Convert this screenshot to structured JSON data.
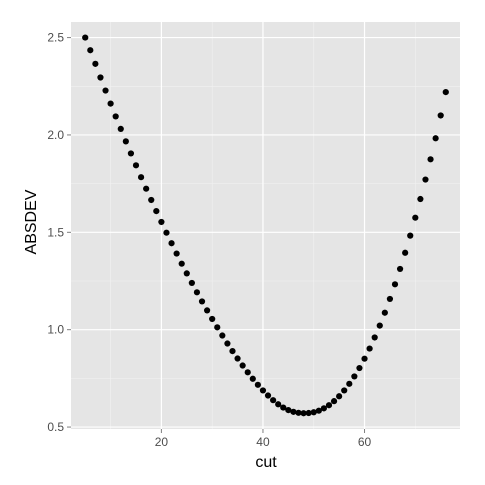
{
  "chart_data": {
    "type": "scatter",
    "title": "",
    "xlabel": "cut",
    "ylabel": "ABSDEV",
    "xlim": [
      2.2,
      78.8
    ],
    "ylim": [
      0.49,
      2.58
    ],
    "x_ticks": [
      20,
      40,
      60
    ],
    "x_tick_labels": [
      "20",
      "40",
      "60"
    ],
    "y_ticks": [
      0.5,
      1.0,
      1.5,
      2.0,
      2.5
    ],
    "y_tick_labels": [
      "0.5",
      "1.0",
      "1.5",
      "2.0",
      "2.5"
    ],
    "grid": true,
    "legend": "none",
    "colors": {
      "panel_background": "#e5e5e5",
      "grid_major": "#ffffff",
      "grid_minor": "#f2f2f2",
      "point": "#000000",
      "tick_label": "#4d4d4d"
    },
    "series": [
      {
        "x": [
          5,
          6,
          7,
          8,
          9,
          10,
          11,
          12,
          13,
          14,
          15,
          16,
          17,
          18,
          19,
          20,
          21,
          22,
          23,
          24,
          25,
          26,
          27,
          28,
          29,
          30,
          31,
          32,
          33,
          34,
          35,
          36,
          37,
          38,
          39,
          40,
          41,
          42,
          43,
          44,
          45,
          46,
          47,
          48,
          49,
          50,
          51,
          52,
          53,
          54,
          55,
          56,
          57,
          58,
          59,
          60,
          61,
          62,
          63,
          64,
          65,
          66,
          67,
          68,
          69,
          70,
          71,
          72,
          73,
          74,
          75,
          76
        ],
        "y": [
          2.5,
          2.435,
          2.365,
          2.295,
          2.228,
          2.161,
          2.095,
          2.031,
          1.967,
          1.905,
          1.844,
          1.783,
          1.724,
          1.666,
          1.609,
          1.553,
          1.498,
          1.444,
          1.391,
          1.339,
          1.289,
          1.24,
          1.192,
          1.145,
          1.099,
          1.055,
          1.012,
          0.97,
          0.929,
          0.89,
          0.852,
          0.816,
          0.781,
          0.748,
          0.717,
          0.688,
          0.662,
          0.638,
          0.617,
          0.6,
          0.587,
          0.578,
          0.573,
          0.571,
          0.572,
          0.576,
          0.584,
          0.596,
          0.612,
          0.633,
          0.658,
          0.688,
          0.722,
          0.76,
          0.803,
          0.851,
          0.903,
          0.96,
          1.021,
          1.087,
          1.158,
          1.233,
          1.312,
          1.395,
          1.483,
          1.575,
          1.671,
          1.771,
          1.875,
          1.983,
          2.1,
          2.22
        ]
      }
    ]
  }
}
